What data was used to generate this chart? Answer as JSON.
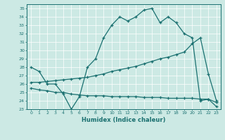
{
  "xlabel": "Humidex (Indice chaleur)",
  "ylabel": "",
  "background_color": "#cce9e4",
  "line_color": "#1a7070",
  "xlim": [
    -0.5,
    23.5
  ],
  "ylim": [
    23,
    35.5
  ],
  "yticks": [
    23,
    24,
    25,
    26,
    27,
    28,
    29,
    30,
    31,
    32,
    33,
    34,
    35
  ],
  "xticks": [
    0,
    1,
    2,
    3,
    4,
    5,
    6,
    7,
    8,
    9,
    10,
    11,
    12,
    13,
    14,
    15,
    16,
    17,
    18,
    19,
    20,
    21,
    22,
    23
  ],
  "line1_x": [
    0,
    1,
    2,
    3,
    4,
    5,
    6,
    7,
    8,
    9,
    10,
    11,
    12,
    13,
    14,
    15,
    16,
    17,
    18,
    19,
    20,
    21,
    22,
    23
  ],
  "line1_y": [
    28.0,
    27.5,
    26.0,
    26.0,
    24.8,
    23.0,
    24.5,
    28.0,
    29.0,
    31.5,
    33.0,
    34.0,
    33.5,
    34.0,
    34.8,
    35.0,
    33.3,
    34.0,
    33.3,
    32.0,
    31.5,
    24.0,
    24.2,
    23.3
  ],
  "line2_x": [
    0,
    1,
    2,
    3,
    4,
    5,
    6,
    7,
    8,
    9,
    10,
    11,
    12,
    13,
    14,
    15,
    16,
    17,
    18,
    19,
    20,
    21,
    22,
    23
  ],
  "line2_y": [
    26.2,
    26.2,
    26.3,
    26.4,
    26.5,
    26.6,
    26.7,
    26.8,
    27.0,
    27.2,
    27.5,
    27.7,
    27.9,
    28.1,
    28.4,
    28.7,
    29.0,
    29.2,
    29.5,
    29.8,
    30.8,
    31.5,
    27.2,
    24.0
  ],
  "line3_x": [
    0,
    1,
    2,
    3,
    4,
    5,
    6,
    7,
    8,
    9,
    10,
    11,
    12,
    13,
    14,
    15,
    16,
    17,
    18,
    19,
    20,
    21,
    22,
    23
  ],
  "line3_y": [
    25.5,
    25.3,
    25.2,
    25.0,
    25.0,
    24.8,
    24.7,
    24.6,
    24.6,
    24.6,
    24.5,
    24.5,
    24.5,
    24.5,
    24.4,
    24.4,
    24.4,
    24.3,
    24.3,
    24.3,
    24.3,
    24.2,
    24.2,
    23.8
  ]
}
